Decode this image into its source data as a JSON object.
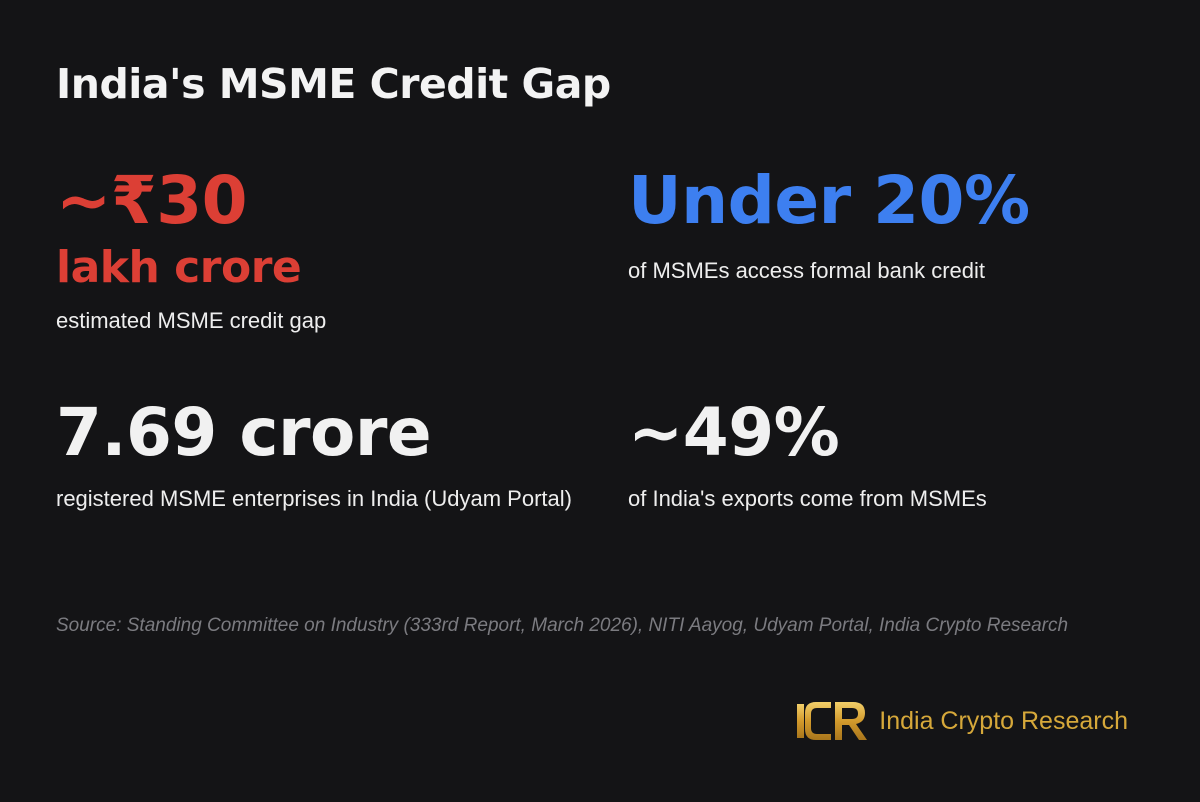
{
  "title": "India's MSME Credit Gap",
  "stats": [
    {
      "value": "~₹30",
      "value_line2": "lakh crore",
      "description": "estimated MSME credit gap",
      "color": "#dc3f35"
    },
    {
      "value": "Under 20%",
      "description": "of MSMEs access formal bank credit",
      "color": "#3d7ff0"
    },
    {
      "value": "7.69 crore",
      "description": "registered MSME enterprises in India (Udyam Portal)",
      "color": "#f1f1f1"
    },
    {
      "value": "~49%",
      "description": "of India's exports come from MSMEs",
      "color": "#f1f1f1"
    }
  ],
  "source": "Source: Standing Committee on Industry (333rd Report, March 2026), NITI Aayog, Udyam Portal, India Crypto Research",
  "brand": {
    "logo_text": "ICR",
    "name": "India Crypto Research",
    "color": "#d6a83a"
  }
}
